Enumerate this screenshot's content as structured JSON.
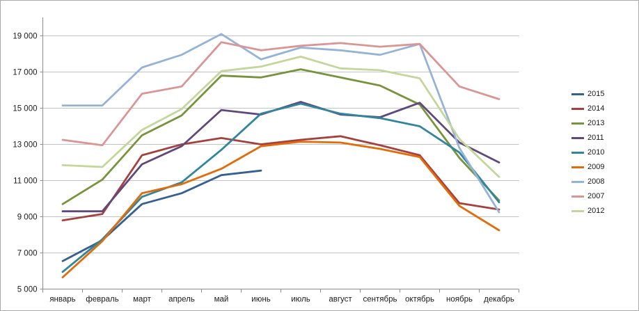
{
  "chart": {
    "background": "#ffffff",
    "border_color": "#a9a9a9",
    "gridline_color": "#c3c3c3",
    "axis_color": "#8c8c8c",
    "text_color": "#1a1a1a",
    "legend_labels": [
      "2015",
      "2014",
      "2013",
      "2011",
      "2010",
      "2009",
      "2008",
      "2007",
      "2012"
    ]
  },
  "chart_data": {
    "type": "line",
    "title": "",
    "xlabel": "",
    "ylabel": "",
    "grid": true,
    "legend_position": "right",
    "ylim": [
      5000,
      20000
    ],
    "y_tick_values": [
      19000,
      17000,
      15000,
      13000,
      11000,
      9000,
      7000,
      5000
    ],
    "y_tick_labels": [
      "19 000",
      "17 000",
      "15 000",
      "13 000",
      "11 000",
      "9 000",
      "7 000",
      "5 000"
    ],
    "categories": [
      "январь",
      "февраль",
      "март",
      "апрель",
      "май",
      "июнь",
      "июль",
      "август",
      "сентябрь",
      "октябрь",
      "ноябрь",
      "декабрь"
    ],
    "series": [
      {
        "name": "2015",
        "color": "#366092",
        "values": [
          6550,
          7700,
          9700,
          10300,
          11300,
          11550,
          null,
          null,
          null,
          null,
          null,
          null
        ]
      },
      {
        "name": "2014",
        "color": "#a5413d",
        "values": [
          8800,
          9150,
          12400,
          13000,
          13350,
          13000,
          13250,
          13450,
          12950,
          12400,
          9750,
          9400
        ]
      },
      {
        "name": "2013",
        "color": "#78933c",
        "values": [
          9700,
          11050,
          13500,
          14600,
          16800,
          16700,
          17150,
          16700,
          16250,
          15200,
          12250,
          9900
        ]
      },
      {
        "name": "2011",
        "color": "#5f497a",
        "values": [
          9300,
          9300,
          11900,
          12900,
          14900,
          14650,
          15350,
          14650,
          14500,
          15300,
          13100,
          12000
        ]
      },
      {
        "name": "2010",
        "color": "#31859c",
        "values": [
          5950,
          7750,
          10100,
          10900,
          12700,
          14700,
          15250,
          14700,
          14450,
          14000,
          12550,
          9800
        ]
      },
      {
        "name": "2009",
        "color": "#e36c0a",
        "values": [
          5650,
          7650,
          10300,
          10800,
          11650,
          12900,
          13150,
          13100,
          12750,
          12300,
          9600,
          8250
        ]
      },
      {
        "name": "2008",
        "color": "#95b3d7",
        "values": [
          15150,
          15150,
          17250,
          17950,
          19100,
          17700,
          18350,
          18200,
          17950,
          18550,
          12800,
          9250
        ]
      },
      {
        "name": "2007",
        "color": "#d99694",
        "values": [
          13250,
          12950,
          15800,
          16200,
          18650,
          18200,
          18450,
          18600,
          18400,
          18550,
          16200,
          15500
        ]
      },
      {
        "name": "2012",
        "color": "#c3d69b",
        "values": [
          11850,
          11750,
          13800,
          14950,
          17050,
          17300,
          17850,
          17200,
          17100,
          16650,
          13300,
          11200
        ]
      }
    ]
  }
}
